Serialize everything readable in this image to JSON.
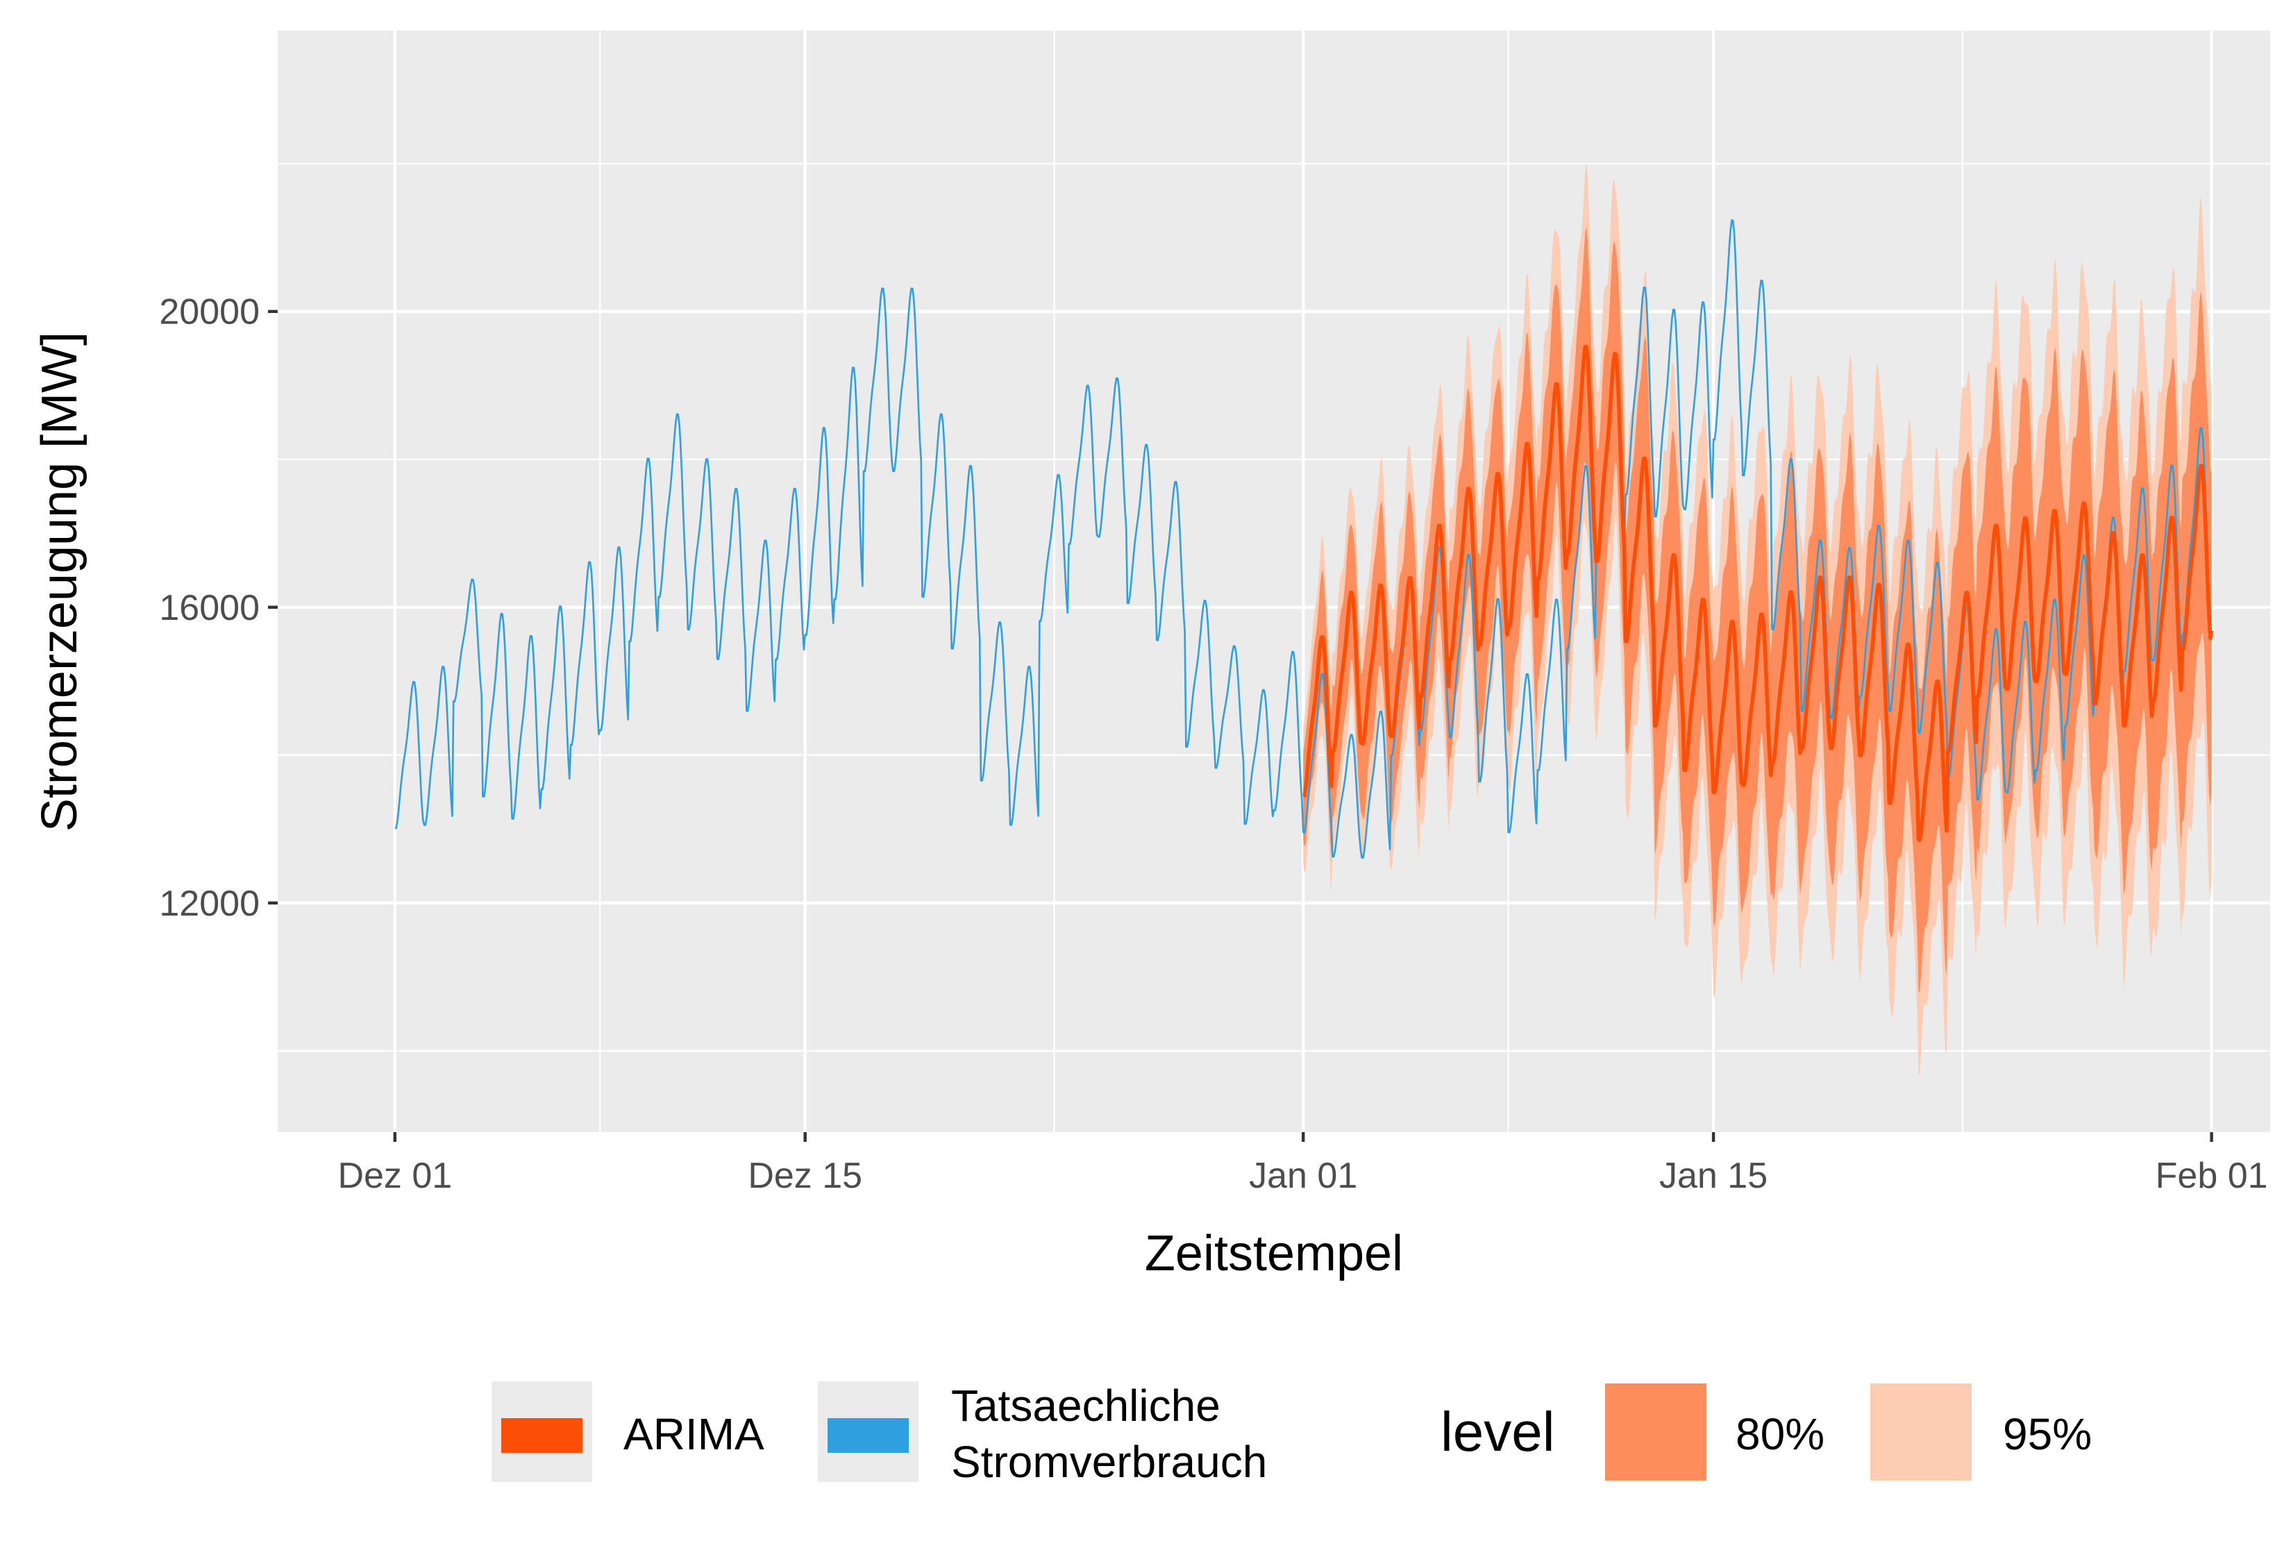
{
  "chart_data": {
    "type": "line",
    "title": "",
    "xlabel": "Zeitstempel",
    "ylabel": "Stromerzeugung [MW]",
    "x_range": [
      "2021-11-27",
      "2022-02-03"
    ],
    "ylim": [
      8900,
      23800
    ],
    "x_ticks": [
      {
        "label": "Dez 01",
        "date": "2021-12-01"
      },
      {
        "label": "Dez 15",
        "date": "2021-12-15"
      },
      {
        "label": "Jan 01",
        "date": "2022-01-01"
      },
      {
        "label": "Jan 15",
        "date": "2022-01-15"
      },
      {
        "label": "Feb 01",
        "date": "2022-02-01"
      }
    ],
    "y_ticks": [
      {
        "label": "12000",
        "value": 12000
      },
      {
        "label": "16000",
        "value": 16000
      },
      {
        "label": "20000",
        "value": 20000
      }
    ],
    "grid": true,
    "legend_placement": "bottom",
    "legend": {
      "series_items": [
        {
          "name": "ARIMA",
          "color": "#FC4E07"
        },
        {
          "name_lines": [
            "Tatsaechliche",
            "Stromverbrauch"
          ],
          "color": "#2E9FDF"
        }
      ],
      "level_title": "level",
      "level_items": [
        {
          "label": "80%",
          "color": "#FD8D5C"
        },
        {
          "label": "95%",
          "color": "#FECCB2"
        }
      ]
    },
    "series": [
      {
        "name": "Tatsaechliche Stromverbrauch",
        "color": "#2E9FDF",
        "resolution": "hourly",
        "start": "2021-12-01",
        "end": "2022-02-01",
        "daily_mean": [
          13700,
          13800,
          15300,
          14300,
          14000,
          14400,
          15000,
          15200,
          16400,
          17000,
          16500,
          16100,
          15400,
          16100,
          16600,
          17200,
          18700,
          18700,
          17000,
          16300,
          14400,
          13800,
          16500,
          17600,
          17700,
          16800,
          16300,
          14800,
          14400,
          13700,
          14000,
          13700,
          13200,
          13300,
          14800,
          15200,
          15100,
          14500,
          13700,
          14600,
          16300,
          17600,
          18500,
          18200,
          18300,
          19300,
          18700,
          16500,
          15400,
          15300,
          15600,
          15400,
          15100,
          14500,
          14200,
          14300,
          14600,
          15200,
          15600,
          16000,
          16200,
          16600
        ],
        "daily_amplitude": [
          1200,
          1300,
          1000,
          1500,
          1500,
          1500,
          1500,
          1500,
          1500,
          1500,
          1400,
          1400,
          1400,
          1400,
          1700,
          1900,
          1500,
          1500,
          1500,
          1500,
          1300,
          1300,
          1200,
          1300,
          1300,
          1300,
          1300,
          1200,
          1000,
          1100,
          1300,
          1300,
          1000,
          1200,
          1400,
          1500,
          1500,
          1500,
          1300,
          1400,
          1500,
          1600,
          1700,
          1700,
          1700,
          1800,
          1600,
          1400,
          1400,
          1400,
          1400,
          1400,
          1400,
          1400,
          1400,
          1400,
          1400,
          1400,
          1500,
          1500,
          1600,
          1700
        ]
      },
      {
        "name": "ARIMA",
        "color": "#FC4E07",
        "resolution": "hourly",
        "start": "2022-01-01",
        "end": "2022-02-01",
        "daily_mean": [
          14200,
          14800,
          14900,
          15000,
          15600,
          16100,
          16300,
          16600,
          17300,
          17700,
          17600,
          16400,
          15200,
          14600,
          14300,
          14400,
          14700,
          14900,
          14900,
          14800,
          14100,
          13600,
          14800,
          15600,
          15700,
          15800,
          15900,
          15500,
          15200,
          15600,
          16300,
          16600
        ],
        "daily_amplitude": [
          1300,
          1300,
          1300,
          1300,
          1400,
          1400,
          1400,
          1500,
          1600,
          1700,
          1700,
          1500,
          1400,
          1400,
          1400,
          1400,
          1400,
          1400,
          1400,
          1400,
          1300,
          1300,
          1300,
          1400,
          1400,
          1400,
          1400,
          1400,
          1400,
          1500,
          1500,
          1600
        ],
        "interval_80_halfwidth": [
          600,
          2200
        ],
        "interval_95_halfwidth": [
          900,
          3400
        ]
      }
    ]
  }
}
